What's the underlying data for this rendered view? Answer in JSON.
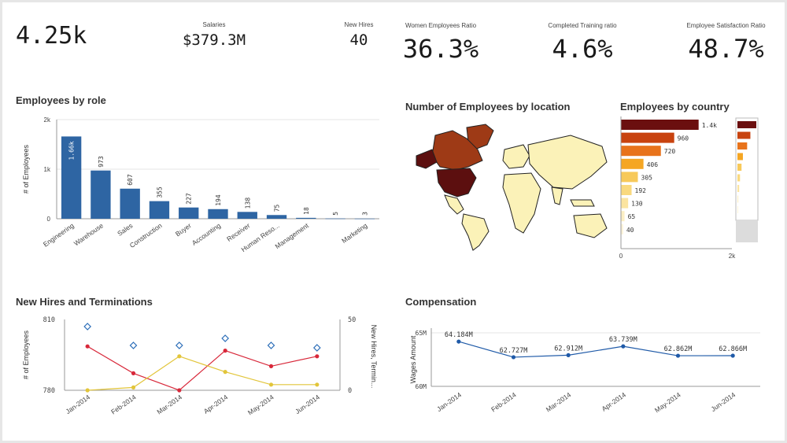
{
  "kpis": {
    "employees": {
      "value": "4.25k"
    },
    "salaries": {
      "label": "Salaries",
      "value": "$379.3M"
    },
    "new_hires": {
      "label": "New Hires",
      "value": "40"
    },
    "women_ratio": {
      "label": "Women Employees Ratio",
      "value": "36.3%"
    },
    "training_ratio": {
      "label": "Completed Training ratio",
      "value": "4.6%"
    },
    "satisfaction_ratio": {
      "label": "Employee Satisfaction Ratio",
      "value": "48.7%"
    }
  },
  "titles": {
    "by_role": "Employees by role",
    "by_location": "Number of Employees by location",
    "by_country": "Employees by country",
    "hires_terms": "New Hires and Terminations",
    "compensation": "Compensation"
  },
  "colors": {
    "bar_blue": "#2e65a3",
    "line_red": "#d8283a",
    "line_yellow": "#e2c53a",
    "diamond_blue": "#2a6db8",
    "comp_blue": "#1f5aa8",
    "map_dark": "#5c0f0f",
    "map_mid": "#9e3a16",
    "map_light": "#fbf2b8"
  },
  "chart_data": [
    {
      "id": "employees-by-role",
      "type": "bar",
      "title": "Employees by role",
      "ylabel": "# of Employees",
      "ylim": [
        0,
        2000
      ],
      "yticks": [
        "0",
        "1k",
        "2k"
      ],
      "categories": [
        "Engineering",
        "Warehouse",
        "Sales",
        "Construction",
        "Buyer",
        "Accounting",
        "Receiver",
        "Human Reso...",
        "Management",
        "",
        "Marketing"
      ],
      "values": [
        1660,
        973,
        607,
        355,
        227,
        194,
        138,
        75,
        18,
        5,
        3
      ],
      "labels": [
        "1.66k",
        "973",
        "607",
        "355",
        "227",
        "194",
        "138",
        "75",
        "18",
        "5",
        "3"
      ]
    },
    {
      "id": "employees-by-country",
      "type": "bar",
      "title": "Employees by country",
      "orientation": "horizontal",
      "xlim": [
        0,
        2000
      ],
      "xticks": [
        "0",
        "2k"
      ],
      "values": [
        1400,
        960,
        720,
        406,
        305,
        192,
        130,
        65,
        40
      ],
      "labels": [
        "1.4k",
        "960",
        "720",
        "406",
        "305",
        "192",
        "130",
        "65",
        "40"
      ],
      "colors": [
        "#6b0f0f",
        "#c8430f",
        "#e8731b",
        "#f5a623",
        "#f7c95a",
        "#f9d97e",
        "#fbe4a0",
        "#fcefc5",
        "#fdf5da"
      ]
    },
    {
      "id": "new-hires-terminations",
      "type": "line",
      "title": "New Hires and Terminations",
      "ylabel": "# of Employees",
      "y2label": "New Hires, Termin...",
      "ylim": [
        780,
        810
      ],
      "yticks": [
        "780",
        "810"
      ],
      "y2lim": [
        0,
        50
      ],
      "y2ticks": [
        "0",
        "50"
      ],
      "x": [
        "Jan-2014",
        "Feb-2014",
        "Mar-2014",
        "Apr-2014",
        "May-2014",
        "Jun-2014"
      ],
      "series": [
        {
          "values": [
            807,
            799,
            799,
            802,
            799,
            798
          ],
          "marker": "diamond",
          "axis": "left"
        },
        {
          "values": [
            31,
            12,
            0,
            28,
            17,
            24
          ],
          "axis": "right"
        },
        {
          "values": [
            0,
            2,
            24,
            13,
            4,
            4
          ],
          "axis": "right"
        }
      ]
    },
    {
      "id": "compensation",
      "type": "line",
      "title": "Compensation",
      "ylabel": "Wages Amount",
      "ylim": [
        60000000,
        65000000
      ],
      "yticks": [
        "60M",
        "65M"
      ],
      "x": [
        "Jan-2014",
        "Feb-2014",
        "Mar-2014",
        "Apr-2014",
        "May-2014",
        "Jun-2014"
      ],
      "series": [
        {
          "values": [
            64184000,
            62727000,
            62912000,
            63739000,
            62862000,
            62866000
          ],
          "labels": [
            "64.184M",
            "62.727M",
            "62.912M",
            "63.739M",
            "62.862M",
            "62.866M"
          ]
        }
      ]
    }
  ]
}
